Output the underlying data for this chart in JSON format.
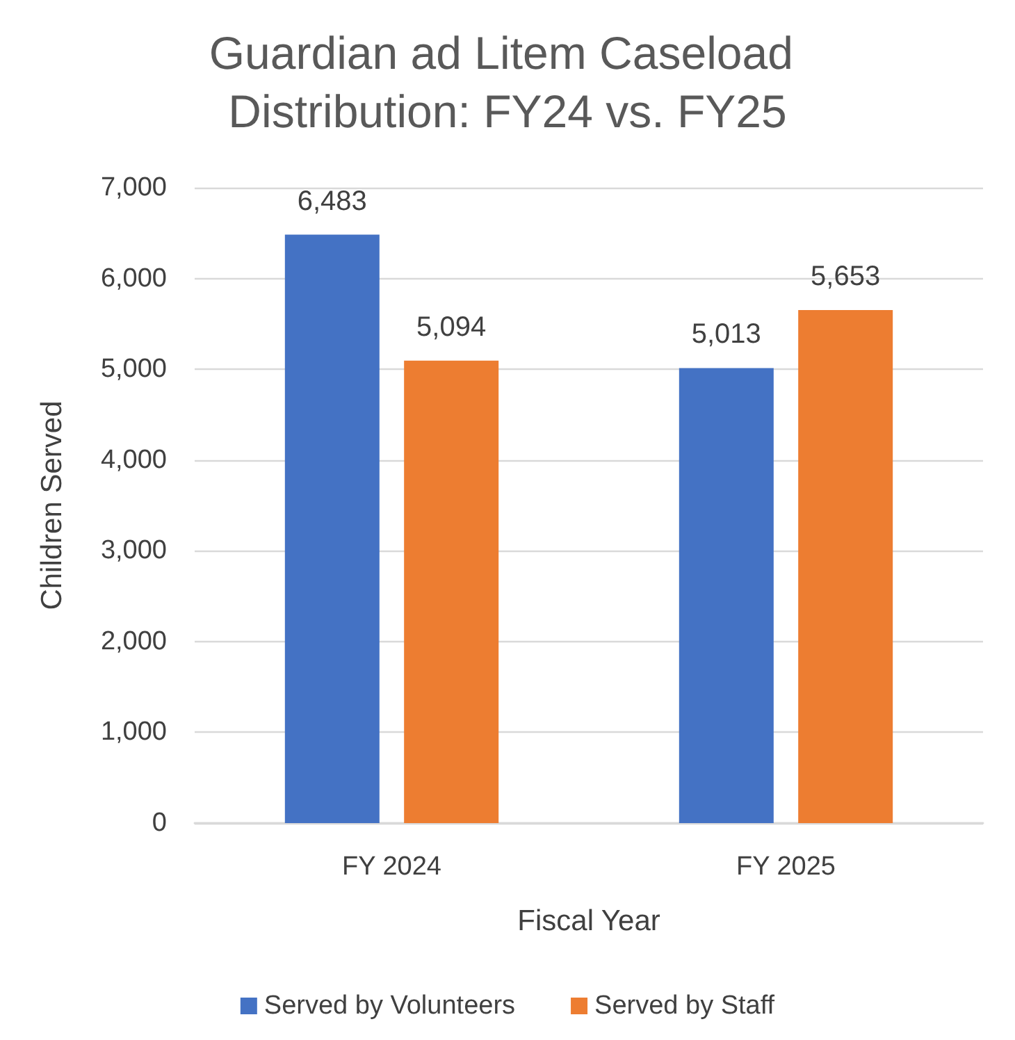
{
  "chart_data": {
    "type": "bar",
    "title": "Guardian ad Litem Caseload Distribution: FY24 vs. FY25",
    "xlabel": "Fiscal Year",
    "ylabel": "Children Served",
    "categories": [
      "FY 2024",
      "FY 2025"
    ],
    "series": [
      {
        "name": "Served by Volunteers",
        "color": "#4472c4",
        "values": [
          6483,
          5013
        ],
        "value_labels": [
          "6,483",
          "5,013"
        ]
      },
      {
        "name": "Served by Staff",
        "color": "#ed7d31",
        "values": [
          5094,
          5653
        ],
        "value_labels": [
          "5,094",
          "5,653"
        ]
      }
    ],
    "ylim": [
      0,
      7000
    ],
    "yticks": [
      {
        "value": 0,
        "label": "0"
      },
      {
        "value": 1000,
        "label": "1,000"
      },
      {
        "value": 2000,
        "label": "2,000"
      },
      {
        "value": 3000,
        "label": "3,000"
      },
      {
        "value": 4000,
        "label": "4,000"
      },
      {
        "value": 5000,
        "label": "5,000"
      },
      {
        "value": 6000,
        "label": "6,000"
      },
      {
        "value": 7000,
        "label": "7,000"
      }
    ],
    "grid": "y",
    "legend": "bottom"
  }
}
